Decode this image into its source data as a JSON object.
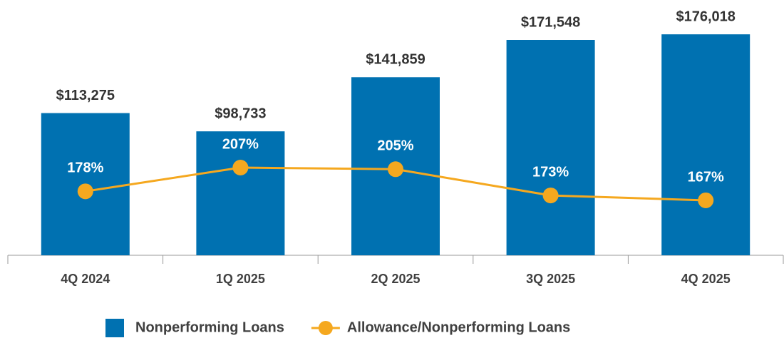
{
  "chart_data": {
    "type": "bar",
    "categories": [
      "4Q 2024",
      "1Q 2025",
      "2Q 2025",
      "3Q 2025",
      "4Q 2025"
    ],
    "ylim": [
      0,
      192000
    ],
    "y2lim": [
      100,
      394
    ],
    "series": [
      {
        "name": "Nonperforming Loans",
        "type": "bar",
        "color": "#0071b1",
        "values": [
          113275,
          98733,
          141859,
          171548,
          176018
        ],
        "value_labels": [
          "$113,275",
          "$98,733",
          "$141,859",
          "$171,548",
          "$176,018"
        ]
      },
      {
        "name": "Allowance/Nonperforming Loans",
        "type": "line",
        "axis": "y2",
        "color": "#f5a81f",
        "values": [
          178,
          207,
          205,
          173,
          167
        ],
        "value_labels": [
          "178%",
          "207%",
          "205%",
          "173%",
          "167%"
        ]
      }
    ],
    "legend": "bottom"
  }
}
